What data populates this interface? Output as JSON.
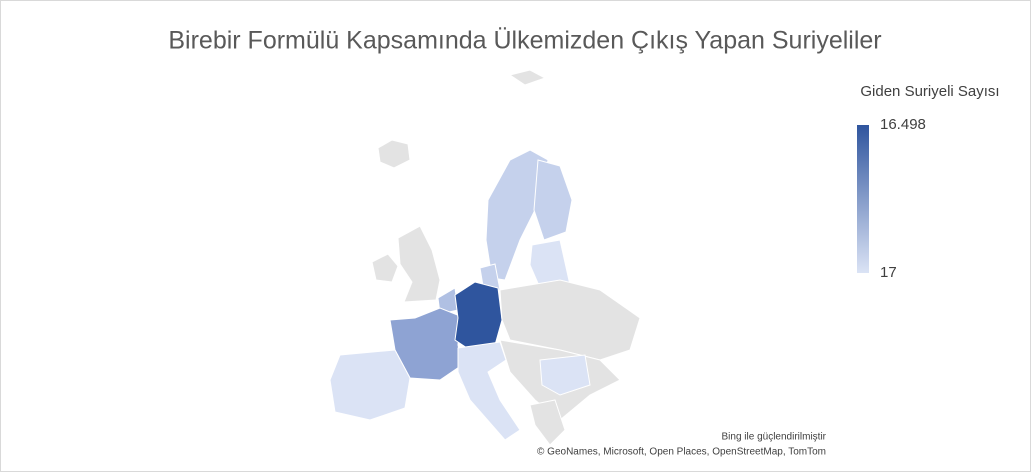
{
  "title": "Birebir Formülü Kapsamında Ülkemizden Çıkış Yapan Suriyeliler",
  "legend": {
    "title": "Giden Suriyeli Sayısı",
    "max": {
      "value": 16498,
      "label": "16.498"
    },
    "min": 17,
    "color_low": "#dbe3f5",
    "color_high": "#2f559e"
  },
  "attribution": {
    "powered": "Bing ile güçlendirilmiştir",
    "sources": "© GeoNames, Microsoft, Open Places, OpenStreetMap, TomTom"
  }
}
